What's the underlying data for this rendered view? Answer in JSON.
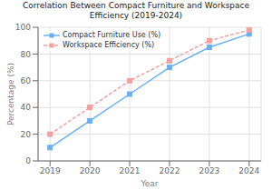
{
  "chart_data": {
    "type": "line",
    "title": "Correlation Between Compact Furniture and Workspace Efficiency (2019-2024)",
    "x_label": "Year",
    "y_label": "Percentage (%)",
    "x": [
      2019,
      2020,
      2021,
      2022,
      2023,
      2024
    ],
    "series": [
      {
        "name": "Compact Furniture Use (%)",
        "color": "#6ab0f5",
        "marker": "square",
        "line_style": "solid",
        "values": [
          10,
          30,
          50,
          70,
          85,
          95
        ]
      },
      {
        "name": "Workspace Efficiency (%)",
        "color": "#f5a0a0",
        "marker": "square",
        "line_style": "dashed",
        "values": [
          20,
          40,
          60,
          75,
          90,
          98
        ]
      }
    ],
    "xlim": [
      2018.7,
      2024.3
    ],
    "xticks": [
      2019,
      2020,
      2021,
      2022,
      2023,
      2024
    ],
    "ylim": [
      0,
      100
    ],
    "yticks": [
      0,
      20,
      40,
      60,
      80,
      100
    ],
    "grid": true,
    "legend": "upper left"
  }
}
